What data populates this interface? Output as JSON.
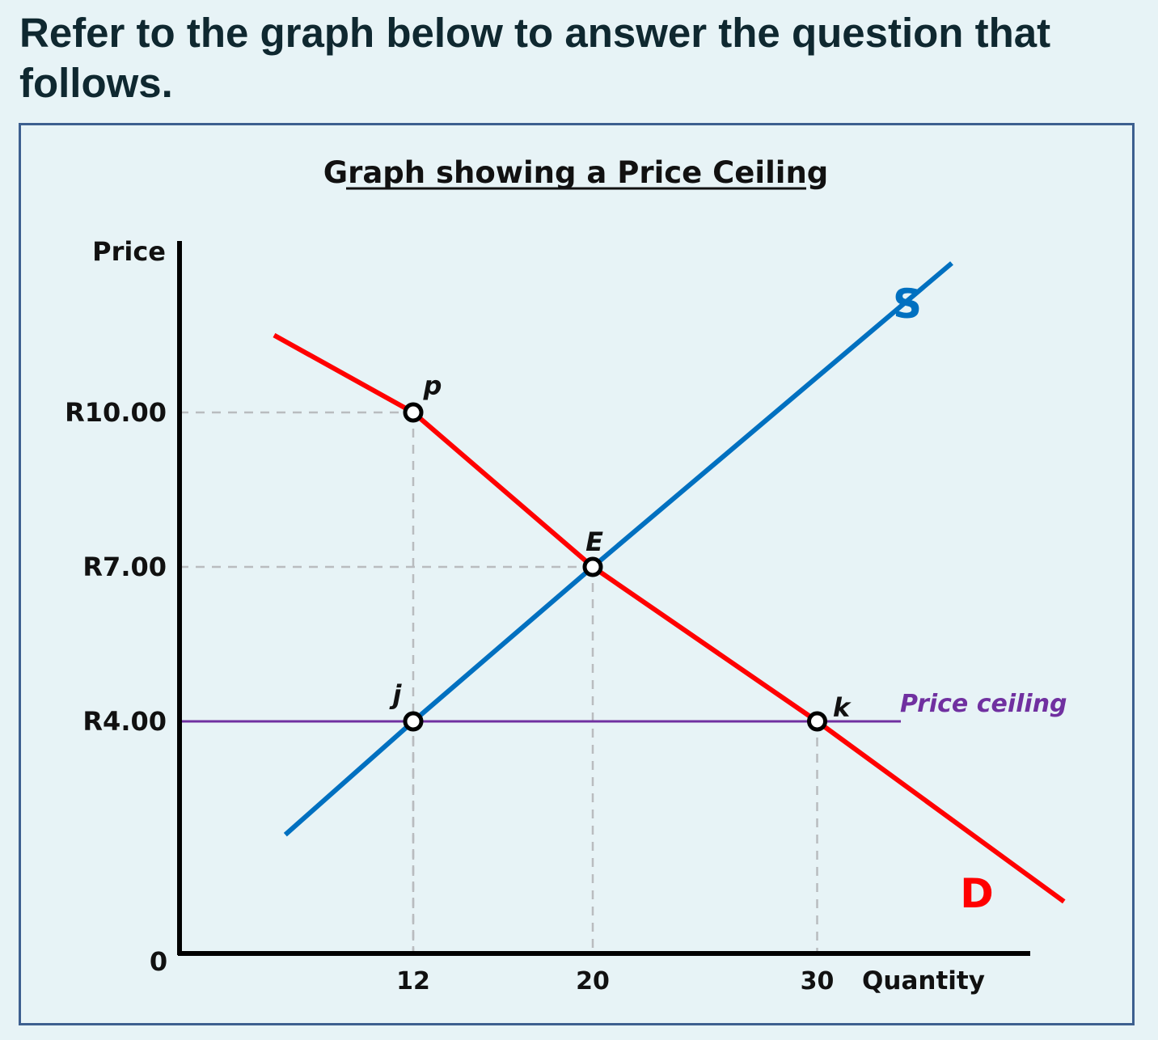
{
  "question": {
    "text": "Refer to the graph below to answer the question that follows."
  },
  "chart_data": {
    "type": "line",
    "title": "Graph showing a Price Ceiling",
    "xlabel": "Quantity",
    "ylabel": "Price",
    "x_ticks": [
      "12",
      "20",
      "30"
    ],
    "y_ticks": [
      "R10.00",
      "R7.00",
      "R4.00"
    ],
    "origin_label": "0",
    "series": [
      {
        "name": "S",
        "color": "#0070c0",
        "points": [
          [
            6.3,
            1.8
          ],
          [
            12,
            4
          ],
          [
            20,
            7
          ],
          [
            36,
            12.9
          ]
        ]
      },
      {
        "name": "D",
        "color": "#ff0000",
        "points": [
          [
            5.8,
            11.5
          ],
          [
            12,
            10
          ],
          [
            20,
            7
          ],
          [
            30,
            4
          ],
          [
            41,
            0.5
          ]
        ]
      }
    ],
    "price_ceiling": {
      "label": "Price ceiling",
      "value": 4,
      "color": "#7030a0"
    },
    "points": [
      {
        "label": "p",
        "x": 12,
        "y": 10
      },
      {
        "label": "E",
        "x": 20,
        "y": 7
      },
      {
        "label": "j",
        "x": 12,
        "y": 4
      },
      {
        "label": "k",
        "x": 30,
        "y": 4
      }
    ]
  }
}
